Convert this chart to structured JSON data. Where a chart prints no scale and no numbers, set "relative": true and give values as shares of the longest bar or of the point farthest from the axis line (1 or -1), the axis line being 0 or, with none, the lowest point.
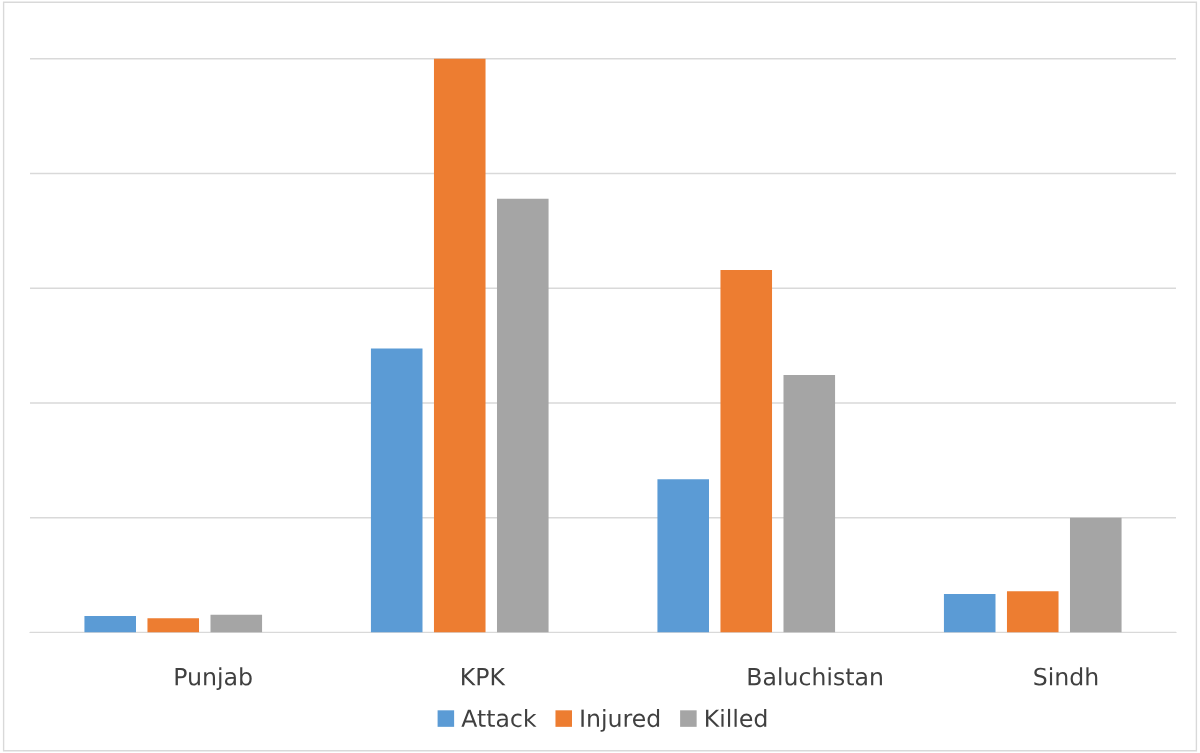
{
  "chart_data": {
    "type": "bar",
    "relative": true,
    "categories": [
      "Punjab",
      "KPK",
      "Baluchistan",
      "Sindh"
    ],
    "series": [
      {
        "name": "Attack",
        "color": "#5b9bd5",
        "values": [
          0.029,
          0.495,
          0.267,
          0.067
        ]
      },
      {
        "name": "Injured",
        "color": "#ed7d31",
        "values": [
          0.025,
          1,
          0.632,
          0.072
        ]
      },
      {
        "name": "Killed",
        "color": "#a5a5a5",
        "values": [
          0.031,
          0.756,
          0.449,
          0.2
        ]
      }
    ],
    "grid": "y",
    "legend": "bottom"
  }
}
